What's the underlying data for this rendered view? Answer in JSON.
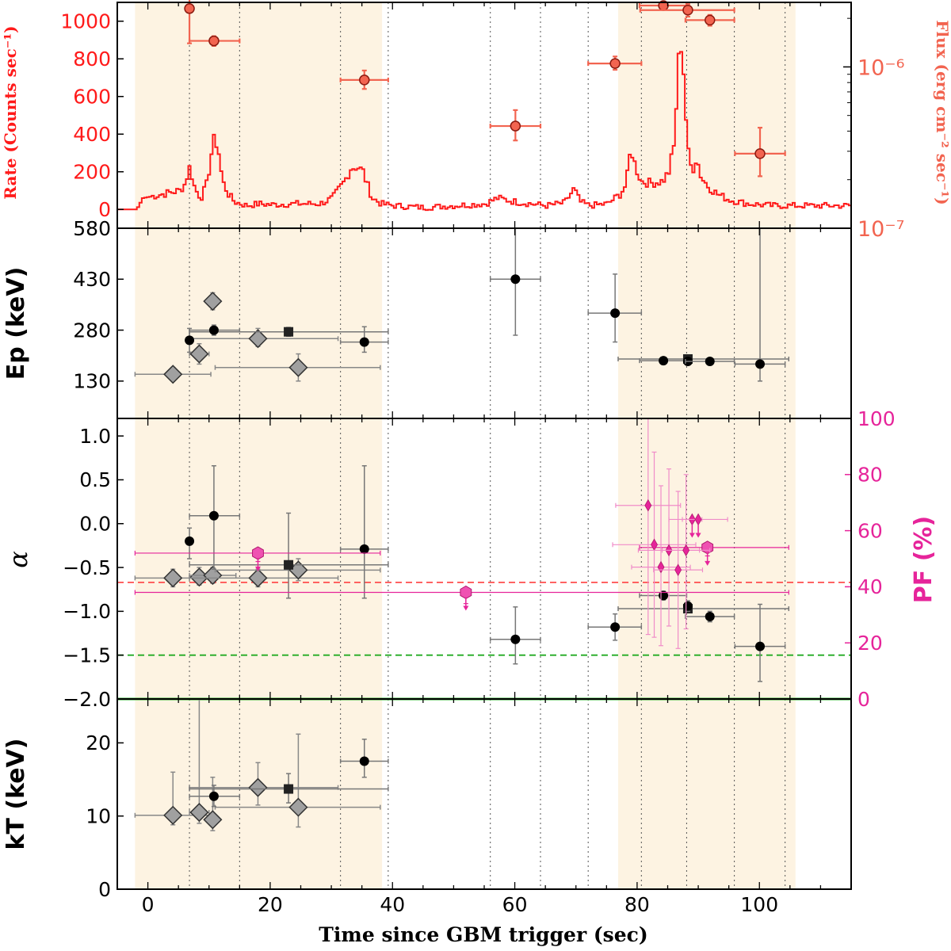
{
  "chart_data": [
    {
      "panel": "rate-flux",
      "type": "line",
      "ylabel": "Rate (Counts sec⁻¹)",
      "ylabel_right": "Flux (erg cm⁻² sec⁻¹)",
      "ylim": [
        -100,
        1100
      ],
      "yticks": [
        0,
        200,
        400,
        600,
        800,
        1000
      ],
      "yticks_right": [
        "10⁻⁶",
        "10⁻⁷"
      ],
      "flux_log_range": [
        -7,
        -5.6
      ],
      "lightcurve_rate_approx": [
        [
          -5,
          0
        ],
        [
          -2,
          0
        ],
        [
          -1,
          60
        ],
        [
          2,
          80
        ],
        [
          5,
          100
        ],
        [
          6,
          140
        ],
        [
          6.5,
          230
        ],
        [
          7,
          180
        ],
        [
          7.5,
          110
        ],
        [
          8.5,
          60
        ],
        [
          9.5,
          140
        ],
        [
          10.3,
          320
        ],
        [
          10.8,
          385
        ],
        [
          11.4,
          300
        ],
        [
          12,
          150
        ],
        [
          13,
          80
        ],
        [
          14,
          40
        ],
        [
          16,
          20
        ],
        [
          18,
          30
        ],
        [
          20,
          25
        ],
        [
          24,
          30
        ],
        [
          28,
          30
        ],
        [
          30,
          60
        ],
        [
          32,
          150
        ],
        [
          33,
          220
        ],
        [
          34,
          230
        ],
        [
          35,
          200
        ],
        [
          35.5,
          150
        ],
        [
          36.5,
          60
        ],
        [
          38,
          30
        ],
        [
          40,
          20
        ],
        [
          45,
          10
        ],
        [
          50,
          20
        ],
        [
          55,
          30
        ],
        [
          57,
          60
        ],
        [
          60,
          40
        ],
        [
          65,
          20
        ],
        [
          68,
          35
        ],
        [
          69.5,
          110
        ],
        [
          70.5,
          40
        ],
        [
          72,
          20
        ],
        [
          75,
          30
        ],
        [
          77,
          80
        ],
        [
          78,
          130
        ],
        [
          78.8,
          330
        ],
        [
          79.5,
          230
        ],
        [
          80.5,
          150
        ],
        [
          82,
          140
        ],
        [
          84,
          150
        ],
        [
          85,
          200
        ],
        [
          85.8,
          330
        ],
        [
          86.3,
          600
        ],
        [
          86.8,
          900
        ],
        [
          87.2,
          880
        ],
        [
          87.6,
          600
        ],
        [
          88.1,
          310
        ],
        [
          88.8,
          200
        ],
        [
          89.5,
          280
        ],
        [
          90.3,
          170
        ],
        [
          91.5,
          120
        ],
        [
          93,
          80
        ],
        [
          95,
          50
        ],
        [
          98,
          30
        ],
        [
          102,
          20
        ],
        [
          108,
          20
        ],
        [
          115,
          20
        ]
      ],
      "flux_points": [
        {
          "t": 6.8,
          "tlo": 6.8,
          "thi": 6.8,
          "flux": 2.3e-06,
          "flo": 1.4e-06,
          "fhi": 2.7e-06
        },
        {
          "t": 10.8,
          "tlo": 6.8,
          "thi": 15.0,
          "flux": 1.45e-06,
          "flo": 1.35e-06,
          "fhi": 1.55e-06
        },
        {
          "t": 35.4,
          "tlo": 31.5,
          "thi": 39.3,
          "flux": 8.3e-07,
          "flo": 7.3e-07,
          "fhi": 9.5e-07
        },
        {
          "t": 60.1,
          "tlo": 56.0,
          "thi": 64.2,
          "flux": 4.3e-07,
          "flo": 3.5e-07,
          "fhi": 5.4e-07
        },
        {
          "t": 76.4,
          "tlo": 72.0,
          "thi": 80.7,
          "flux": 1.05e-06,
          "flo": 9.6e-07,
          "fhi": 1.16e-06
        },
        {
          "t": 84.3,
          "tlo": 80.4,
          "thi": 88.1,
          "flux": 2.4e-06,
          "flo": 2.3e-06,
          "fhi": 2.5e-06
        },
        {
          "t": 88.3,
          "tlo": 80.5,
          "thi": 95.9,
          "flux": 2.25e-06,
          "flo": 2.05e-06,
          "fhi": 2.45e-06
        },
        {
          "t": 91.9,
          "tlo": 87.9,
          "thi": 95.9,
          "flux": 1.95e-06,
          "flo": 1.8e-06,
          "fhi": 2.1e-06
        },
        {
          "t": 100.1,
          "tlo": 96.0,
          "thi": 104.2,
          "flux": 2.9e-07,
          "flo": 2.1e-07,
          "fhi": 4.2e-07
        }
      ]
    },
    {
      "panel": "ep",
      "type": "scatter",
      "ylabel": "Ep (keV)",
      "ylim": [
        20,
        580
      ],
      "yticks": [
        130,
        280,
        430,
        580
      ],
      "series": [
        {
          "marker": "circle",
          "points": [
            {
              "x": 6.8,
              "xlo": 6.8,
              "xhi": 6.8,
              "y": 250,
              "ylo": 215,
              "yhi": 285
            },
            {
              "x": 10.8,
              "xlo": 6.8,
              "xhi": 15.0,
              "y": 280,
              "ylo": 265,
              "yhi": 295
            },
            {
              "x": 35.4,
              "xlo": 31.5,
              "xhi": 39.3,
              "y": 245,
              "ylo": 215,
              "yhi": 290
            },
            {
              "x": 60.1,
              "xlo": 56.0,
              "xhi": 64.2,
              "y": 430,
              "ylo": 265,
              "yhi": 580
            },
            {
              "x": 76.4,
              "xlo": 72.0,
              "xhi": 80.7,
              "y": 330,
              "ylo": 245,
              "yhi": 445
            },
            {
              "x": 84.3,
              "xlo": 80.4,
              "xhi": 88.1,
              "y": 190,
              "ylo": 183,
              "yhi": 197
            },
            {
              "x": 88.3,
              "xlo": 88.3,
              "xhi": 88.3,
              "y": 188,
              "ylo": 180,
              "yhi": 196
            },
            {
              "x": 91.9,
              "xlo": 87.9,
              "xhi": 95.9,
              "y": 188,
              "ylo": 180,
              "yhi": 196
            },
            {
              "x": 100.1,
              "xlo": 96.0,
              "xhi": 104.2,
              "y": 180,
              "ylo": 130,
              "yhi": 580
            }
          ]
        },
        {
          "marker": "square",
          "points": [
            {
              "x": 23.0,
              "xlo": 6.8,
              "xhi": 39.3,
              "y": 275,
              "ylo": 262,
              "yhi": 288
            },
            {
              "x": 88.3,
              "xlo": 76.9,
              "xhi": 104.8,
              "y": 195,
              "ylo": 186,
              "yhi": 204
            }
          ]
        },
        {
          "marker": "diamond",
          "points": [
            {
              "x": 4.1,
              "xlo": -2.1,
              "xhi": 10.3,
              "y": 150,
              "ylo": 133,
              "yhi": 170
            },
            {
              "x": 8.4,
              "xlo": 6.8,
              "xhi": 10.0,
              "y": 210,
              "ylo": 180,
              "yhi": 240
            },
            {
              "x": 10.6,
              "xlo": 10.6,
              "xhi": 10.6,
              "y": 365,
              "ylo": 340,
              "yhi": 390
            },
            {
              "x": 18.0,
              "xlo": 6.8,
              "xhi": 31.1,
              "y": 255,
              "ylo": 232,
              "yhi": 285
            },
            {
              "x": 24.6,
              "xlo": 11.0,
              "xhi": 38.0,
              "y": 170,
              "ylo": 130,
              "yhi": 210
            }
          ]
        }
      ]
    },
    {
      "panel": "alpha",
      "type": "scatter",
      "ylabel": "α",
      "ylabel_right": "PF (%)",
      "ylim": [
        -2.0,
        1.2
      ],
      "yticks": [
        -2.0,
        -1.5,
        -1.0,
        -0.5,
        0.0,
        0.5,
        1.0
      ],
      "ylim_right": [
        0,
        100
      ],
      "yticks_right": [
        0,
        20,
        40,
        60,
        80,
        100
      ],
      "hlines": [
        {
          "y": -0.67,
          "color": "#ff4d4d",
          "style": "dashed"
        },
        {
          "y": -1.5,
          "color": "#22aa22",
          "style": "dashed"
        },
        {
          "y": -2.0,
          "color": "#22aa22",
          "style": "solid"
        }
      ],
      "series": [
        {
          "marker": "circle",
          "points": [
            {
              "x": 6.8,
              "xlo": 6.8,
              "xhi": 6.8,
              "y": -0.2,
              "ylo": -0.4,
              "yhi": -0.05
            },
            {
              "x": 10.8,
              "xlo": 6.8,
              "xhi": 15.0,
              "y": 0.09,
              "ylo": -0.52,
              "yhi": 0.66
            },
            {
              "x": 35.4,
              "xlo": 31.5,
              "xhi": 39.3,
              "y": -0.29,
              "ylo": -0.85,
              "yhi": 0.66
            },
            {
              "x": 60.1,
              "xlo": 56.0,
              "xhi": 64.2,
              "y": -1.32,
              "ylo": -1.6,
              "yhi": -0.95
            },
            {
              "x": 76.4,
              "xlo": 72.0,
              "xhi": 80.7,
              "y": -1.18,
              "ylo": -1.33,
              "yhi": -1.03
            },
            {
              "x": 84.3,
              "xlo": 80.4,
              "xhi": 88.1,
              "y": -0.82,
              "ylo": -0.87,
              "yhi": -0.77
            },
            {
              "x": 88.3,
              "xlo": 88.3,
              "xhi": 88.3,
              "y": -0.94,
              "ylo": -1.0,
              "yhi": -0.88
            },
            {
              "x": 91.9,
              "xlo": 87.9,
              "xhi": 95.9,
              "y": -1.06,
              "ylo": -1.12,
              "yhi": -1.0
            },
            {
              "x": 100.1,
              "xlo": 96.0,
              "xhi": 104.2,
              "y": -1.4,
              "ylo": -1.8,
              "yhi": -0.92
            }
          ]
        },
        {
          "marker": "square",
          "points": [
            {
              "x": 23.0,
              "xlo": 6.8,
              "xhi": 39.3,
              "y": -0.47,
              "ylo": -0.85,
              "yhi": 0.12
            },
            {
              "x": 88.3,
              "xlo": 76.9,
              "xhi": 104.8,
              "y": -0.97,
              "ylo": -1.0,
              "yhi": -0.94
            }
          ]
        },
        {
          "marker": "diamond",
          "points": [
            {
              "x": 4.1,
              "xlo": -2.1,
              "xhi": 10.3,
              "y": -0.62,
              "ylo": -0.72,
              "yhi": -0.52
            },
            {
              "x": 8.4,
              "xlo": 6.8,
              "xhi": 10.0,
              "y": -0.61,
              "ylo": -0.7,
              "yhi": -0.5
            },
            {
              "x": 10.6,
              "xlo": 6.8,
              "xhi": 14.4,
              "y": -0.59,
              "ylo": -0.68,
              "yhi": -0.5
            },
            {
              "x": 18.0,
              "xlo": 6.8,
              "xhi": 31.1,
              "y": -0.62,
              "ylo": -0.72,
              "yhi": -0.52
            },
            {
              "x": 24.6,
              "xlo": 11.0,
              "xhi": 38.0,
              "y": -0.53,
              "ylo": -0.65,
              "yhi": -0.4
            }
          ]
        }
      ],
      "pf_series": [
        {
          "marker": "hexagon",
          "upper_limit": true,
          "points": [
            {
              "x": 18.0,
              "xlo": -2.1,
              "xhi": 38.0,
              "pf": 52,
              "pflo": 49,
              "pfhi": 52
            },
            {
              "x": 52.0,
              "xlo": -2.1,
              "xhi": 104.8,
              "pf": 38,
              "pflo": 34,
              "pfhi": 38
            },
            {
              "x": 91.5,
              "xlo": 80.4,
              "xhi": 104.8,
              "pf": 54,
              "pflo": 51,
              "pfhi": 54
            }
          ]
        },
        {
          "marker": "thin-diamond",
          "upper_limit": true,
          "points": [
            {
              "x": 89.0,
              "xlo": 87.4,
              "xhi": 90.6,
              "pf": 64
            },
            {
              "x": 90.0,
              "xlo": 85.2,
              "xhi": 94.8,
              "pf": 64
            }
          ]
        },
        {
          "marker": "thin-diamond",
          "upper_limit": false,
          "points": [
            {
              "x": 81.8,
              "xlo": 76.5,
              "xhi": 87.1,
              "pf": 69,
              "pflo": 23,
              "pfhi": 100
            },
            {
              "x": 82.8,
              "xlo": 76.0,
              "xhi": 89.6,
              "pf": 55,
              "pflo": 22,
              "pfhi": 88
            },
            {
              "x": 83.9,
              "xlo": 79.1,
              "xhi": 88.7,
              "pf": 47,
              "pflo": 19,
              "pfhi": 76
            },
            {
              "x": 85.2,
              "xlo": 80.2,
              "xhi": 90.2,
              "pf": 53,
              "pflo": 26,
              "pfhi": 82
            },
            {
              "x": 86.7,
              "xlo": 82.7,
              "xhi": 90.7,
              "pf": 46,
              "pflo": 18,
              "pfhi": 74
            },
            {
              "x": 88.0,
              "xlo": 84.1,
              "xhi": 91.9,
              "pf": 53,
              "pflo": 25,
              "pfhi": 80
            }
          ]
        }
      ]
    },
    {
      "panel": "kt",
      "type": "scatter",
      "ylabel": "kT (keV)",
      "ylim": [
        0,
        26
      ],
      "yticks": [
        0,
        10,
        20
      ],
      "series": [
        {
          "marker": "circle",
          "points": [
            {
              "x": 10.8,
              "xlo": 6.8,
              "xhi": 15.0,
              "y": 12.7,
              "ylo": 11.3,
              "yhi": 14.2
            },
            {
              "x": 35.4,
              "xlo": 31.5,
              "xhi": 39.3,
              "y": 17.5,
              "ylo": 15.3,
              "yhi": 20.5
            }
          ]
        },
        {
          "marker": "square",
          "points": [
            {
              "x": 23.0,
              "xlo": 6.8,
              "xhi": 39.3,
              "y": 13.7,
              "ylo": 11.8,
              "yhi": 15.8
            }
          ]
        },
        {
          "marker": "diamond",
          "points": [
            {
              "x": 4.1,
              "xlo": -2.1,
              "xhi": 10.3,
              "y": 10.1,
              "ylo": 8.8,
              "yhi": 16.0
            },
            {
              "x": 8.4,
              "xlo": 6.8,
              "xhi": 10.0,
              "y": 10.5,
              "ylo": 9.0,
              "yhi": 26.0
            },
            {
              "x": 10.6,
              "xlo": 10.6,
              "xhi": 10.6,
              "y": 9.5,
              "ylo": 8.0,
              "yhi": 15.3
            },
            {
              "x": 18.0,
              "xlo": 6.8,
              "xhi": 31.1,
              "y": 13.9,
              "ylo": 11.5,
              "yhi": 17.3
            },
            {
              "x": 24.6,
              "xlo": 11.0,
              "xhi": 38.0,
              "y": 11.2,
              "ylo": 8.5,
              "yhi": 21.2
            }
          ]
        }
      ]
    }
  ],
  "x_axis": {
    "xlabel": "Time since GBM trigger (sec)",
    "xlim": [
      -5,
      115
    ],
    "xticks": [
      0,
      20,
      40,
      60,
      80,
      100
    ]
  },
  "shaded_intervals": [
    [
      -2.1,
      38.3
    ],
    [
      76.9,
      105.9
    ]
  ],
  "dotted_times": [
    6.8,
    15.0,
    31.5,
    39.3,
    56.0,
    64.2,
    72.0,
    80.7,
    88.1,
    95.9,
    104.2
  ],
  "colors": {
    "rate": "#ff1a1a",
    "flux_marker": "#f26450",
    "flux_label": "#f26450",
    "pf": "#e6249a",
    "pf_light": "#f08cc8",
    "shade": "#fdf3e2",
    "points": "#000000",
    "diamond_fill": "#a0a0a0",
    "errorbar": "#808080"
  }
}
